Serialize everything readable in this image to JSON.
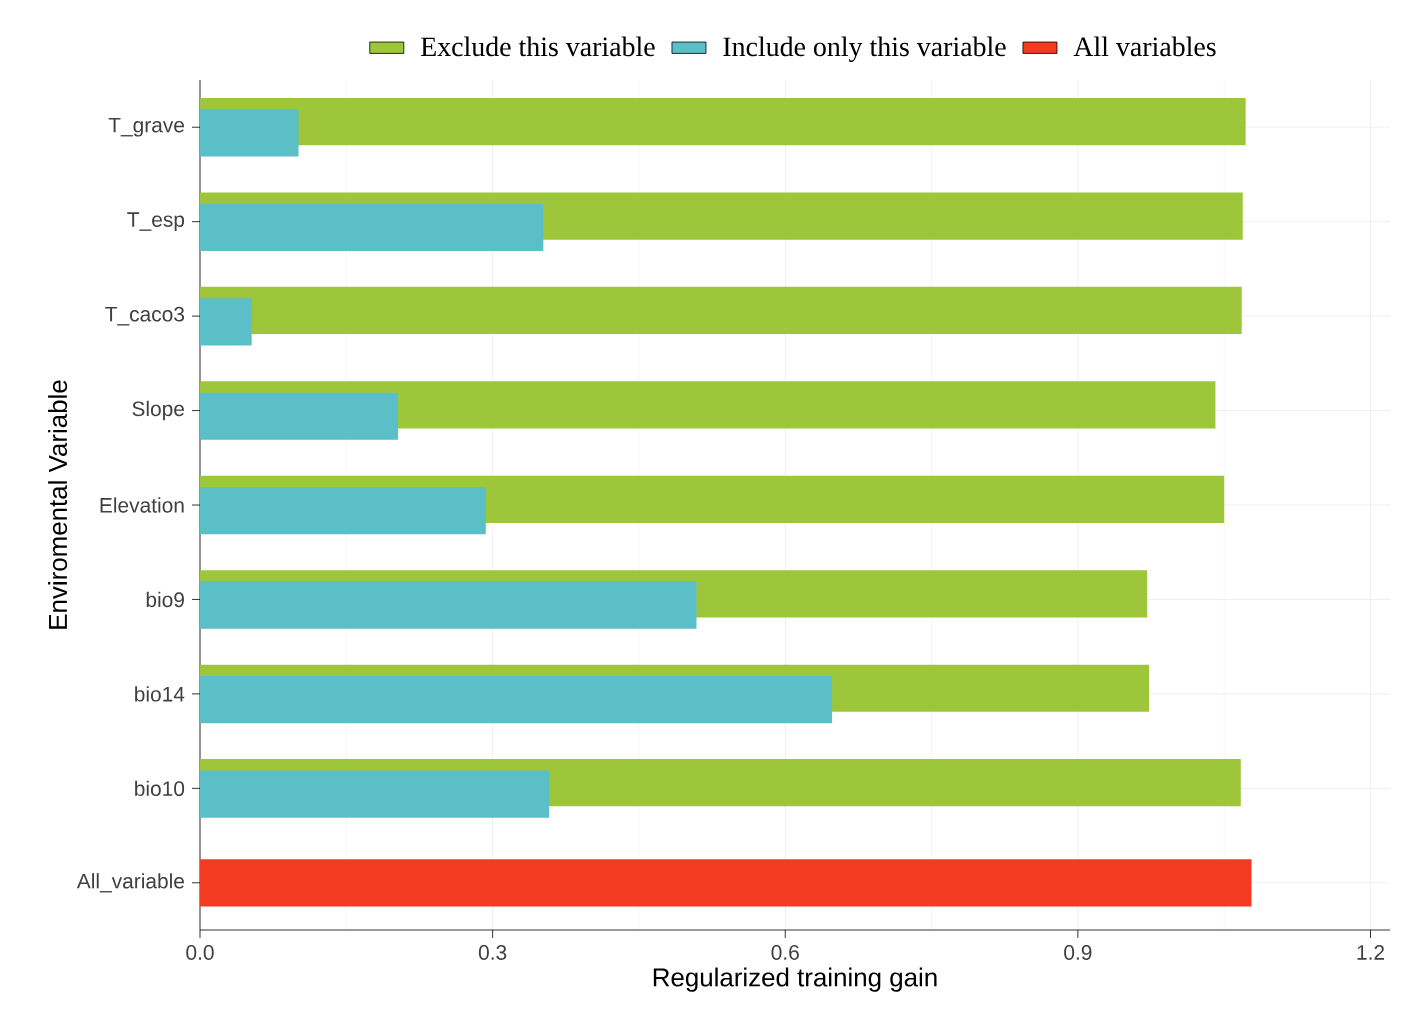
{
  "chart_data": {
    "type": "bar",
    "orientation": "horizontal",
    "xlabel": "Regularized training gain",
    "ylabel": "Enviromental Variable",
    "categories": [
      "T_grave",
      "T_esp",
      "T_caco3",
      "Slope",
      "Elevation",
      "bio9",
      "bio14",
      "bio10",
      "All_variable"
    ],
    "series": [
      {
        "name": "Exclude this variable",
        "color": "#9dc63a",
        "values": [
          1.072,
          1.069,
          1.068,
          1.041,
          1.05,
          0.971,
          0.973,
          1.067,
          null
        ]
      },
      {
        "name": "Include only this variable",
        "color": "#5bbfc8",
        "values": [
          0.101,
          0.352,
          0.053,
          0.203,
          0.293,
          0.509,
          0.648,
          0.358,
          null
        ]
      },
      {
        "name": "All variables",
        "color": "#f43b21",
        "values": [
          null,
          null,
          null,
          null,
          null,
          null,
          null,
          null,
          1.078
        ]
      }
    ],
    "xlim": [
      0,
      1.22
    ],
    "xticks": [
      {
        "value": 0,
        "label": "0.0"
      },
      0.3,
      0.6,
      0.9,
      1.2
    ],
    "grid": true,
    "legend": "top"
  }
}
